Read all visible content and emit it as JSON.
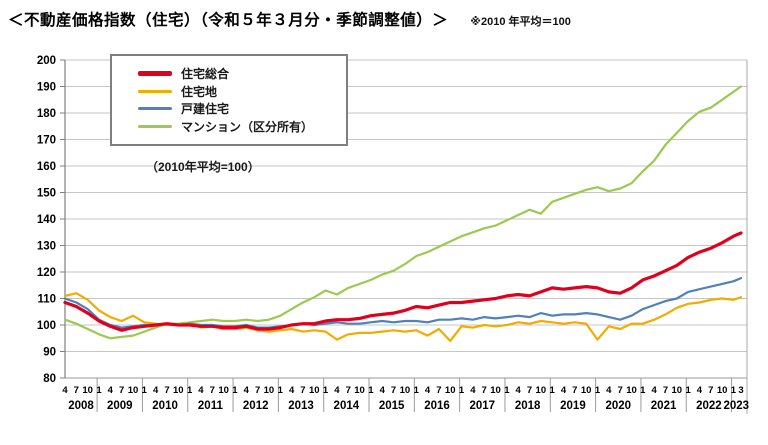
{
  "header": {
    "title": "＜不動産価格指数（住宅）（令和５年３月分・季節調整値）＞",
    "note": "※2010 年平均＝100"
  },
  "legend": {
    "note": "（2010年平均=100）"
  },
  "chart_data": {
    "type": "line",
    "title": "不動産価格指数（住宅）",
    "ylim": [
      80,
      200
    ],
    "y_ticks": [
      80,
      90,
      100,
      110,
      120,
      130,
      140,
      150,
      160,
      170,
      180,
      190,
      200
    ],
    "grid": "horizontal",
    "legend_position": "top-left-inside",
    "x_description": "Monthly, April 2008 - March 2023; ticks label months 4,7,10,1 and final 1,3",
    "month_labels": [
      "4",
      "7",
      "10",
      "1",
      "4",
      "7",
      "10",
      "1",
      "4",
      "7",
      "10",
      "1",
      "4",
      "7",
      "10",
      "1",
      "4",
      "7",
      "10",
      "1",
      "4",
      "7",
      "10",
      "1",
      "4",
      "7",
      "10",
      "1",
      "4",
      "7",
      "10",
      "1",
      "4",
      "7",
      "10",
      "1",
      "4",
      "7",
      "10",
      "1",
      "4",
      "7",
      "10",
      "1",
      "4",
      "7",
      "10",
      "1",
      "4",
      "7",
      "10",
      "1",
      "4",
      "7",
      "10",
      "1",
      "4",
      "7",
      "10",
      "1",
      "3"
    ],
    "years": [
      "2008",
      "2009",
      "2010",
      "2011",
      "2012",
      "2013",
      "2014",
      "2015",
      "2016",
      "2017",
      "2018",
      "2019",
      "2020",
      "2021",
      "2022",
      "2023"
    ],
    "series": [
      {
        "key": "jutaku-sogo",
        "name": "住宅総合",
        "color": "#e0001b",
        "width": 3.2,
        "values": [
          108.5,
          107.0,
          104.5,
          101.5,
          99.5,
          98.0,
          99.0,
          99.5,
          100.0,
          100.5,
          100.0,
          100.0,
          99.5,
          99.5,
          99.0,
          99.0,
          99.5,
          98.5,
          98.5,
          99.0,
          100.0,
          100.5,
          100.5,
          101.5,
          102.0,
          102.0,
          102.5,
          103.5,
          104.0,
          104.5,
          105.5,
          107.0,
          106.5,
          107.5,
          108.5,
          108.5,
          109.0,
          109.5,
          110.0,
          111.0,
          111.5,
          111.0,
          112.5,
          114.0,
          113.5,
          114.0,
          114.5,
          114.0,
          112.5,
          112.0,
          114.0,
          117.0,
          118.5,
          120.5,
          122.5,
          125.5,
          127.5,
          129.0,
          131.0,
          133.5,
          134.7
        ]
      },
      {
        "key": "jutakuchi",
        "name": "住宅地",
        "color": "#f2ab00",
        "width": 2.2,
        "values": [
          111.0,
          112.0,
          109.5,
          105.5,
          103.0,
          101.5,
          103.5,
          101.0,
          100.5,
          100.0,
          100.0,
          100.5,
          99.0,
          99.5,
          98.5,
          98.5,
          99.0,
          98.0,
          97.5,
          98.0,
          98.5,
          97.5,
          98.0,
          97.5,
          94.5,
          96.5,
          97.0,
          97.0,
          97.5,
          98.0,
          97.5,
          98.0,
          96.0,
          98.5,
          94.0,
          99.5,
          99.0,
          100.0,
          99.5,
          100.0,
          101.0,
          100.5,
          101.5,
          101.0,
          100.5,
          101.0,
          100.5,
          94.5,
          99.5,
          98.5,
          100.5,
          100.5,
          102.0,
          104.0,
          106.5,
          108.0,
          108.5,
          109.5,
          110.0,
          109.5,
          110.5
        ]
      },
      {
        "key": "kodate-jutaku",
        "name": "戸建住宅",
        "color": "#4f81bd",
        "width": 2.2,
        "values": [
          110.0,
          108.5,
          106.0,
          102.0,
          100.0,
          99.0,
          99.5,
          100.0,
          100.0,
          100.5,
          100.0,
          100.5,
          100.0,
          100.0,
          99.5,
          99.5,
          100.0,
          99.0,
          99.0,
          99.5,
          100.0,
          100.5,
          100.0,
          100.5,
          101.0,
          100.5,
          100.5,
          101.0,
          101.5,
          101.0,
          101.5,
          101.5,
          101.0,
          102.0,
          102.0,
          102.5,
          102.0,
          103.0,
          102.5,
          103.0,
          103.5,
          103.0,
          104.5,
          103.5,
          104.0,
          104.0,
          104.5,
          104.0,
          103.0,
          102.0,
          103.5,
          106.0,
          107.5,
          109.0,
          110.0,
          112.5,
          113.5,
          114.5,
          115.5,
          116.5,
          117.7
        ]
      },
      {
        "key": "mansion",
        "name": "マンション（区分所有）",
        "color": "#9aca51",
        "width": 2.2,
        "values": [
          102.0,
          100.5,
          98.5,
          96.5,
          95.0,
          95.5,
          96.0,
          97.5,
          99.0,
          100.5,
          100.5,
          101.0,
          101.5,
          102.0,
          101.5,
          101.5,
          102.0,
          101.5,
          102.0,
          103.5,
          106.0,
          108.5,
          110.5,
          113.0,
          111.5,
          114.0,
          115.5,
          117.0,
          119.0,
          120.5,
          123.0,
          126.0,
          127.5,
          129.5,
          131.5,
          133.5,
          135.0,
          136.5,
          137.5,
          139.5,
          141.5,
          143.5,
          142.0,
          146.5,
          148.0,
          149.5,
          151.0,
          152.0,
          150.5,
          151.5,
          153.5,
          158.0,
          162.0,
          168.0,
          172.5,
          177.0,
          180.5,
          182.0,
          185.0,
          188.0,
          190.0
        ]
      }
    ]
  }
}
